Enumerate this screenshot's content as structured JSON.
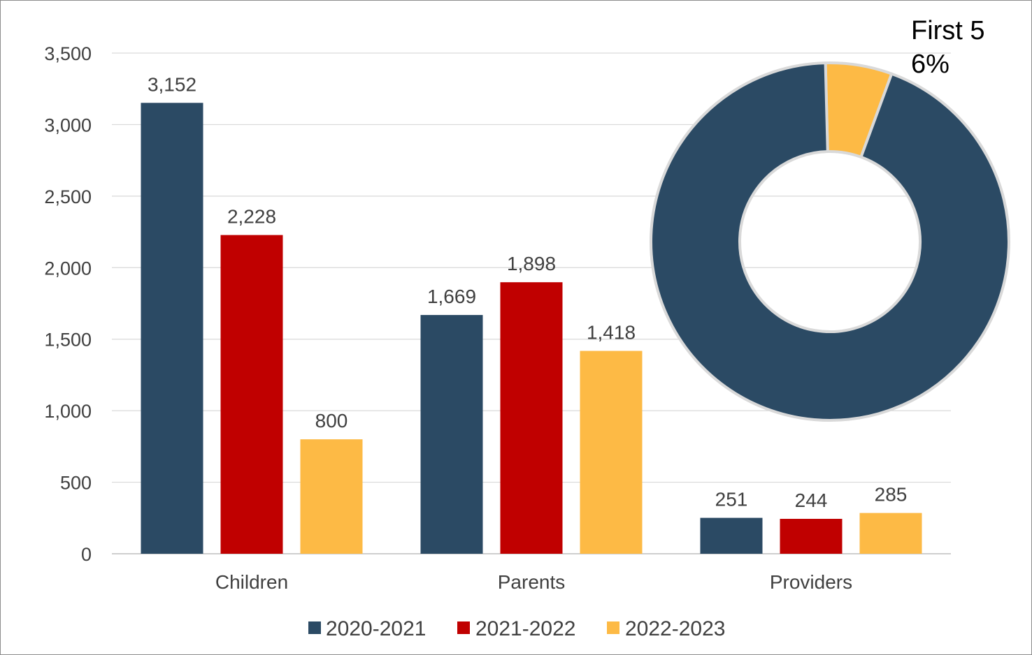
{
  "chart_data": [
    {
      "type": "bar",
      "categories": [
        "Children",
        "Parents",
        "Providers"
      ],
      "series": [
        {
          "name": "2020-2021",
          "color": "#2b4a64",
          "values": [
            3152,
            1669,
            251
          ],
          "labels": [
            "3,152",
            "1,669",
            "251"
          ]
        },
        {
          "name": "2021-2022",
          "color": "#c00000",
          "values": [
            2228,
            1898,
            244
          ],
          "labels": [
            "2,228",
            "1,898",
            "244"
          ]
        },
        {
          "name": "2022-2023",
          "color": "#fdba45",
          "values": [
            800,
            1418,
            285
          ],
          "labels": [
            "800",
            "1,418",
            "285"
          ]
        }
      ],
      "yticks": [
        0,
        500,
        1000,
        1500,
        2000,
        2500,
        3000,
        3500
      ],
      "ytick_labels": [
        "0",
        "500",
        "1,000",
        "1,500",
        "2,000",
        "2,500",
        "3,000",
        "3,500"
      ],
      "ylim": [
        0,
        3500
      ],
      "grid": true,
      "legend": "bottom"
    },
    {
      "type": "pie",
      "donut": true,
      "slices": [
        {
          "value": 6,
          "color": "#fdba45",
          "label_name": "First 5",
          "label_value": "6%"
        },
        {
          "value": 94,
          "color": "#2b4a64"
        }
      ]
    }
  ]
}
